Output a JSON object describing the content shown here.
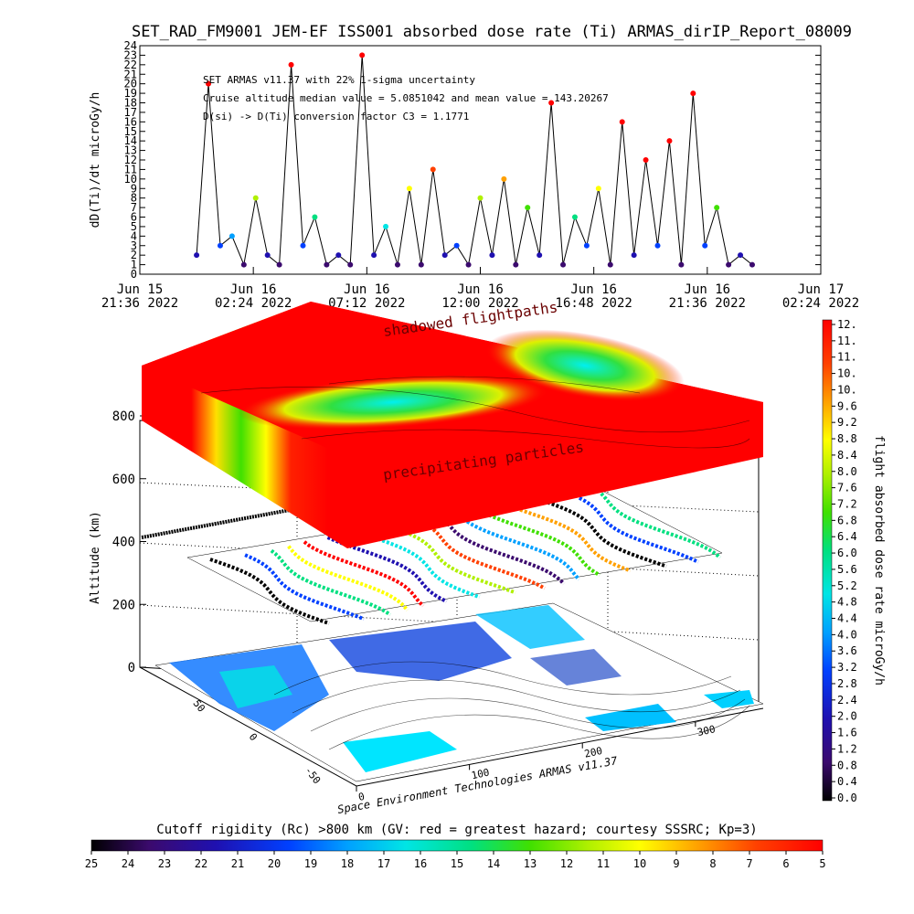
{
  "title": "SET_RAD_FM9001  JEM-EF ISS001 absorbed dose rate (Ti) ARMAS_dirIP_Report_08009",
  "top_panel": {
    "ylabel": "dD(Ti)/dt microGy/h",
    "annotations": [
      "SET ARMAS v11.37 with 22% 1-sigma uncertainty",
      "Cruise altitude median value = 5.0851042 and mean value = 143.20267",
      "D(si) -> D(Ti) conversion factor C3 = 1.1771"
    ],
    "x_ticks": [
      {
        "date": "Jun 15",
        "time": "21:36 2022"
      },
      {
        "date": "Jun 16",
        "time": "02:24 2022"
      },
      {
        "date": "Jun 16",
        "time": "07:12 2022"
      },
      {
        "date": "Jun 16",
        "time": "12:00 2022"
      },
      {
        "date": "Jun 16",
        "time": "16:48 2022"
      },
      {
        "date": "Jun 16",
        "time": "21:36 2022"
      },
      {
        "date": "Jun 17",
        "time": "02:24 2022"
      }
    ]
  },
  "chart_data": [
    {
      "type": "line",
      "ylabel": "dD(Ti)/dt microGy/h",
      "ylim": [
        0,
        24
      ],
      "yticks": [
        0,
        1,
        2,
        3,
        4,
        5,
        6,
        7,
        8,
        9,
        10,
        11,
        12,
        13,
        14,
        15,
        16,
        17,
        18,
        19,
        20,
        21,
        22,
        23,
        24
      ],
      "xlim": [
        "2022-06-15 21:36",
        "2022-06-17 02:24"
      ],
      "x": [
        "2022-06-16 00:00",
        "2022-06-16 00:30",
        "2022-06-16 01:00",
        "2022-06-16 01:30",
        "2022-06-16 02:00",
        "2022-06-16 02:30",
        "2022-06-16 03:00",
        "2022-06-16 03:30",
        "2022-06-16 04:00",
        "2022-06-16 04:30",
        "2022-06-16 05:00",
        "2022-06-16 05:30",
        "2022-06-16 06:00",
        "2022-06-16 06:30",
        "2022-06-16 07:00",
        "2022-06-16 07:30",
        "2022-06-16 08:00",
        "2022-06-16 08:30",
        "2022-06-16 09:00",
        "2022-06-16 09:30",
        "2022-06-16 10:00",
        "2022-06-16 10:30",
        "2022-06-16 11:00",
        "2022-06-16 11:30",
        "2022-06-16 12:00",
        "2022-06-16 12:30",
        "2022-06-16 13:00",
        "2022-06-16 13:30",
        "2022-06-16 14:00",
        "2022-06-16 14:30",
        "2022-06-16 15:00",
        "2022-06-16 15:30",
        "2022-06-16 16:00",
        "2022-06-16 16:30",
        "2022-06-16 17:00",
        "2022-06-16 17:30",
        "2022-06-16 18:00",
        "2022-06-16 18:30",
        "2022-06-16 19:00",
        "2022-06-16 19:30",
        "2022-06-16 20:00",
        "2022-06-16 20:30",
        "2022-06-16 21:00",
        "2022-06-16 21:30",
        "2022-06-16 22:00",
        "2022-06-16 22:30",
        "2022-06-16 23:00",
        "2022-06-16 23:30"
      ],
      "values": [
        2,
        20,
        3,
        4,
        1,
        8,
        2,
        1,
        22,
        3,
        6,
        1,
        2,
        1,
        23,
        2,
        5,
        1,
        9,
        1,
        11,
        2,
        3,
        1,
        8,
        2,
        10,
        1,
        7,
        2,
        18,
        1,
        6,
        3,
        9,
        1,
        16,
        2,
        12,
        3,
        14,
        1,
        19,
        3,
        7,
        1,
        2,
        1
      ]
    },
    {
      "type": "surface",
      "zlabel": "Altitude (km)",
      "zticks": [
        0,
        200,
        400,
        600,
        800
      ],
      "xticks": [
        0,
        100,
        200,
        300
      ],
      "yticks": [
        -50,
        0,
        50
      ],
      "annotations": [
        "shadowed flightpaths",
        "precipitating particles"
      ],
      "credit": "Space Environment Technologies ARMAS v11.37"
    }
  ],
  "right_colorbar": {
    "label": "flight absorbed dose rate microGy/h",
    "ticks": [
      "12.",
      "11.",
      "11.",
      "10.",
      "10.",
      "9.6",
      "9.2",
      "8.8",
      "8.4",
      "8.0",
      "7.6",
      "7.2",
      "6.8",
      "6.4",
      "6.0",
      "5.6",
      "5.2",
      "4.8",
      "4.4",
      "4.0",
      "3.6",
      "3.2",
      "2.8",
      "2.4",
      "2.0",
      "1.6",
      "1.2",
      "0.8",
      "0.4",
      "0.0"
    ]
  },
  "bottom_colorbar": {
    "label": "Cutoff rigidity (Rc) >800 km (GV: red = greatest hazard; courtesy SSSRC; Kp=3)",
    "ticks": [
      "25",
      "24",
      "23",
      "22",
      "21",
      "20",
      "19",
      "18",
      "17",
      "16",
      "15",
      "14",
      "13",
      "12",
      "11",
      "10",
      "9",
      "8",
      "7",
      "6",
      "5"
    ]
  },
  "colors": {
    "rainbow": [
      "#000000",
      "#3b0a6e",
      "#1f10b0",
      "#0040ff",
      "#00a0ff",
      "#00e5e5",
      "#00e080",
      "#40e000",
      "#b0f000",
      "#ffff00",
      "#ffa000",
      "#ff4000",
      "#ff0000"
    ]
  }
}
